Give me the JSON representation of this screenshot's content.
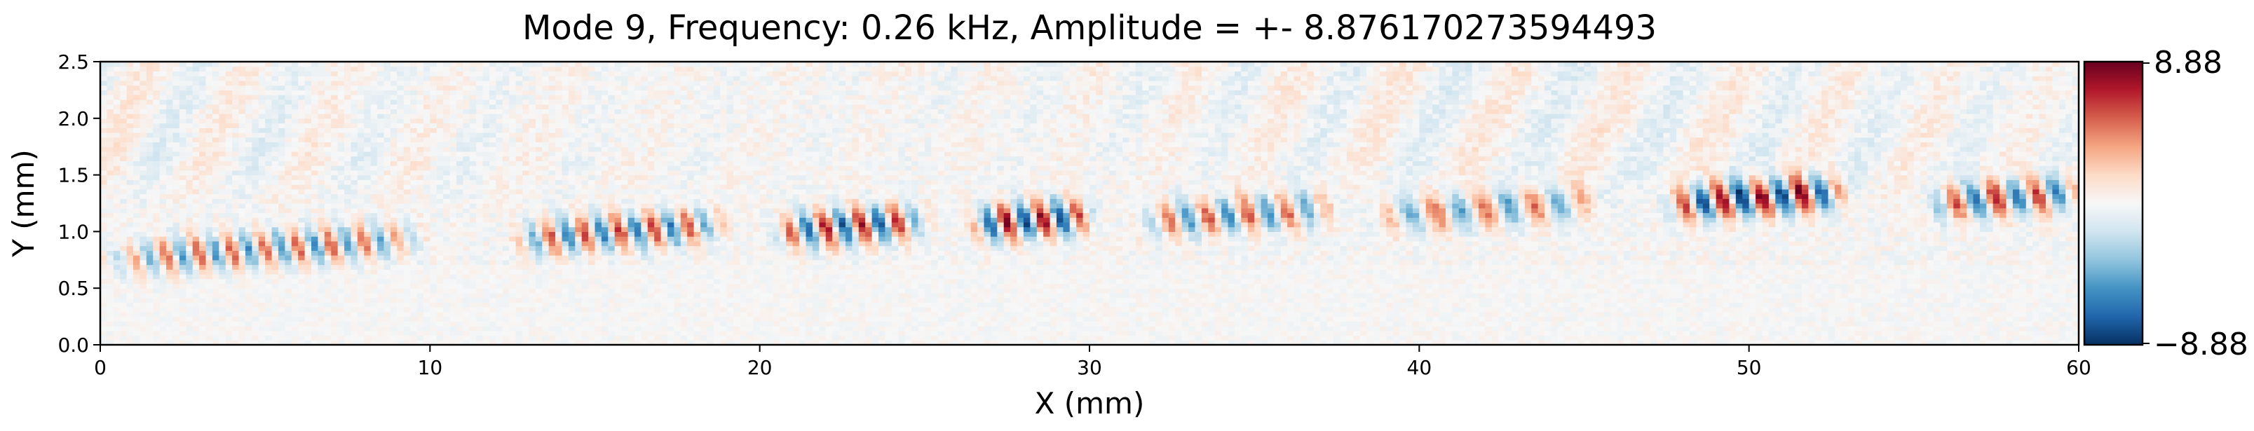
{
  "chart_data": {
    "type": "heatmap",
    "title": "Mode 9, Frequency: 0.26 kHz, Amplitude = +- 8.876170273594493",
    "xlabel": "X (mm)",
    "ylabel": "Y (mm)",
    "xlim": [
      0,
      60
    ],
    "ylim": [
      0,
      2.5
    ],
    "x_ticks": [
      0,
      10,
      20,
      30,
      40,
      50,
      60
    ],
    "x_tick_labels": [
      "0",
      "10",
      "20",
      "30",
      "40",
      "50",
      "60"
    ],
    "y_ticks": [
      0.0,
      0.5,
      1.0,
      1.5,
      2.0,
      2.5
    ],
    "y_tick_labels": [
      "0.0",
      "0.5",
      "1.0",
      "1.5",
      "2.0",
      "2.5"
    ],
    "colormap": "RdBu_r",
    "colors": {
      "low": "#053061",
      "mid": "#f7f7f7",
      "high": "#67001f"
    },
    "colorbar": {
      "min": -8.88,
      "max": 8.88,
      "tick_labels": [
        "8.88",
        "−8.88"
      ]
    },
    "wave_packets": [
      {
        "x_start": 0,
        "x_end": 10,
        "y_center": 0.85,
        "wavelength": 1.0,
        "amplitude": 5.5
      },
      {
        "x_start": 12.5,
        "x_end": 19,
        "y_center": 1.0,
        "wavelength": 1.05,
        "amplitude": 6.5
      },
      {
        "x_start": 20.5,
        "x_end": 25,
        "y_center": 1.05,
        "wavelength": 1.1,
        "amplitude": 7.5
      },
      {
        "x_start": 26.5,
        "x_end": 30,
        "y_center": 1.1,
        "wavelength": 1.1,
        "amplitude": 8.5
      },
      {
        "x_start": 31.5,
        "x_end": 37.5,
        "y_center": 1.15,
        "wavelength": 1.2,
        "amplitude": 5.5
      },
      {
        "x_start": 38.5,
        "x_end": 45.5,
        "y_center": 1.2,
        "wavelength": 1.5,
        "amplitude": 5.0
      },
      {
        "x_start": 47.5,
        "x_end": 53,
        "y_center": 1.3,
        "wavelength": 1.2,
        "amplitude": 8.8
      },
      {
        "x_start": 55.5,
        "x_end": 60,
        "y_center": 1.3,
        "wavelength": 1.25,
        "amplitude": 6.8
      }
    ]
  }
}
